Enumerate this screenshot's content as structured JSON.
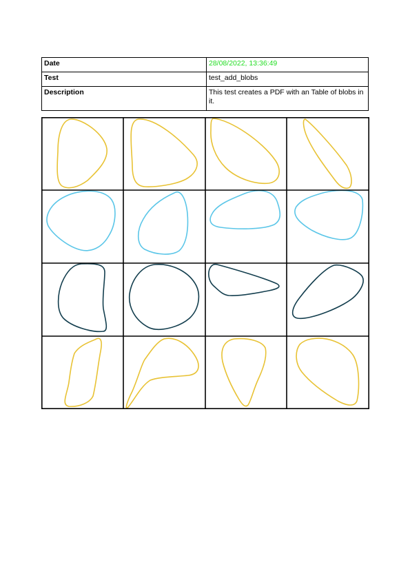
{
  "meta": {
    "date_label": "Date",
    "date_value": "28/08/2022, 13:36:49",
    "date_color": "#22dd22",
    "test_label": "Test",
    "test_value": "test_add_blobs",
    "description_label": "Description",
    "description_value": "This test creates a PDF with an Table of blobs in it."
  },
  "grid": {
    "rows": 4,
    "cols": 4,
    "row_colors": [
      "#e8c234",
      "#5bc6e8",
      "#133e4e",
      "#e8c234"
    ],
    "cells": [
      {
        "name": "blob-r1-c1"
      },
      {
        "name": "blob-r1-c2"
      },
      {
        "name": "blob-r1-c3"
      },
      {
        "name": "blob-r1-c4"
      },
      {
        "name": "blob-r2-c1"
      },
      {
        "name": "blob-r2-c2"
      },
      {
        "name": "blob-r2-c3"
      },
      {
        "name": "blob-r2-c4"
      },
      {
        "name": "blob-r3-c1"
      },
      {
        "name": "blob-r3-c2"
      },
      {
        "name": "blob-r3-c3"
      },
      {
        "name": "blob-r3-c4"
      },
      {
        "name": "blob-r4-c1"
      },
      {
        "name": "blob-r4-c2"
      },
      {
        "name": "blob-r4-c3"
      },
      {
        "name": "blob-r4-c4"
      }
    ]
  }
}
